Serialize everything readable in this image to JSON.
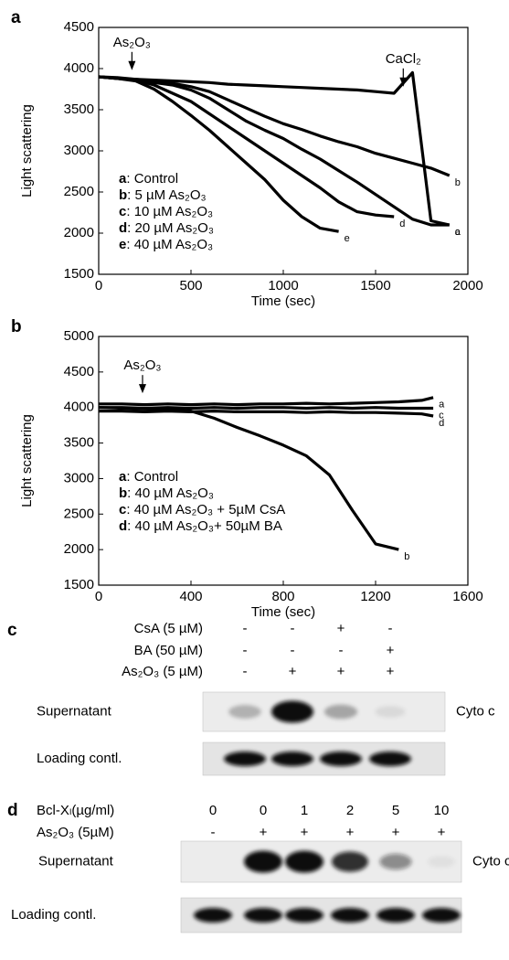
{
  "chart_data": [
    {
      "type": "line",
      "panel": "a",
      "xlabel": "Time (sec)",
      "ylabel": "Light scattering",
      "xlim": [
        0,
        2000
      ],
      "xticks": [
        0,
        500,
        1000,
        1500,
        2000
      ],
      "ylim": [
        1500,
        4500
      ],
      "yticks": [
        1500,
        2000,
        2500,
        3000,
        3500,
        4000,
        4500
      ],
      "legend_position": "lower left",
      "legend_separator": ": ",
      "x": [
        0,
        100,
        200,
        300,
        400,
        500,
        600,
        700,
        800,
        900,
        1000,
        1100,
        1200,
        1300,
        1400,
        1500,
        1600,
        1700,
        1800,
        1900
      ],
      "series": [
        {
          "key": "a",
          "name": "Control",
          "color": "#000000",
          "values": [
            3900,
            3880,
            3870,
            3860,
            3850,
            3840,
            3830,
            3810,
            3800,
            3790,
            3780,
            3770,
            3760,
            3750,
            3740,
            3720,
            3700,
            3950,
            2150,
            2100
          ]
        },
        {
          "key": "b",
          "name": "5 µM As₂O₃",
          "color": "#000000",
          "values": [
            3900,
            3890,
            3870,
            3850,
            3820,
            3780,
            3720,
            3620,
            3520,
            3420,
            3330,
            3260,
            3180,
            3110,
            3050,
            2970,
            2910,
            2850,
            2790,
            2700
          ]
        },
        {
          "key": "c",
          "name": "10 µM As₂O₃",
          "color": "#000000",
          "values": [
            3900,
            3880,
            3860,
            3830,
            3800,
            3740,
            3640,
            3500,
            3360,
            3250,
            3150,
            3020,
            2900,
            2760,
            2620,
            2470,
            2320,
            2170,
            2100,
            2100
          ]
        },
        {
          "key": "d",
          "name": "20 µM As₂O₃",
          "color": "#000000",
          "values": [
            3900,
            3880,
            3860,
            3800,
            3700,
            3600,
            3450,
            3300,
            3150,
            3000,
            2850,
            2700,
            2550,
            2380,
            2260,
            2220,
            2200,
            null,
            null,
            null
          ]
        },
        {
          "key": "e",
          "name": "40 µM As₂O₃",
          "color": "#000000",
          "values": [
            3900,
            3880,
            3850,
            3750,
            3600,
            3430,
            3250,
            3050,
            2850,
            2650,
            2400,
            2200,
            2060,
            2020,
            null,
            null,
            null,
            null,
            null,
            null
          ]
        }
      ],
      "annotations": [
        {
          "text": "As₂O₃",
          "x": 180,
          "y": 3980
        },
        {
          "text": "CaCl₂",
          "x": 1650,
          "y": 3780
        }
      ]
    },
    {
      "type": "line",
      "panel": "b",
      "xlabel": "Time (sec)",
      "ylabel": "Light scattering",
      "xlim": [
        0,
        1600
      ],
      "xticks": [
        0,
        400,
        800,
        1200,
        1600
      ],
      "ylim": [
        1500,
        5000
      ],
      "yticks": [
        1500,
        2000,
        2500,
        3000,
        3500,
        4000,
        4500,
        5000
      ],
      "legend_position": "lower left",
      "legend_separator": ": ",
      "x": [
        0,
        100,
        200,
        300,
        400,
        500,
        600,
        700,
        800,
        900,
        1000,
        1100,
        1200,
        1300,
        1400,
        1450
      ],
      "series": [
        {
          "key": "a",
          "name": "Control",
          "color": "#000000",
          "values": [
            4050,
            4050,
            4040,
            4050,
            4040,
            4050,
            4040,
            4050,
            4050,
            4060,
            4050,
            4060,
            4070,
            4080,
            4100,
            4140
          ]
        },
        {
          "key": "b",
          "name": "40 µM As₂O₃",
          "color": "#000000",
          "values": [
            4000,
            3990,
            3980,
            3970,
            3950,
            3850,
            3720,
            3600,
            3470,
            3320,
            3050,
            2550,
            2080,
            2000,
            null,
            null
          ]
        },
        {
          "key": "c",
          "name": "40 µM As₂O₃ + 5µM CsA",
          "color": "#000000",
          "values": [
            4000,
            4000,
            3990,
            4000,
            3990,
            4000,
            3990,
            4000,
            4000,
            3990,
            4000,
            3990,
            4000,
            3990,
            3990,
            3990
          ]
        },
        {
          "key": "d",
          "name": "40 µM As₂O₃+ 50µM BA",
          "color": "#000000",
          "values": [
            3950,
            3950,
            3940,
            3950,
            3940,
            3950,
            3940,
            3940,
            3940,
            3930,
            3940,
            3930,
            3930,
            3920,
            3910,
            3880
          ]
        }
      ],
      "annotations": [
        {
          "text": "As₂O₃",
          "x": 190,
          "y": 4200
        }
      ]
    }
  ],
  "blots": [
    {
      "panel": "c",
      "conditions": [
        {
          "label": "CsA (5 µM)",
          "signs": [
            "-",
            "-",
            "+",
            "-"
          ]
        },
        {
          "label": "BA (50 µM)",
          "signs": [
            "-",
            "-",
            "-",
            "+"
          ]
        },
        {
          "label": "As₂O₃ (5 µM)",
          "signs": [
            "-",
            "+",
            "+",
            "+"
          ]
        }
      ],
      "rows": [
        "Supernatant",
        "Loading contl."
      ],
      "target": "Cyto c"
    },
    {
      "panel": "d",
      "conditions": [
        {
          "label": "Bcl-Xₗ(µg/ml)",
          "signs": [
            "0",
            "0",
            "1",
            "2",
            "5",
            "10"
          ]
        },
        {
          "label": "As₂O₃ (5µM)",
          "signs": [
            "-",
            "+",
            "+",
            "+",
            "+",
            "+"
          ]
        }
      ],
      "rows": [
        "Supernatant",
        "Loading contl."
      ],
      "target": "Cyto c"
    }
  ]
}
